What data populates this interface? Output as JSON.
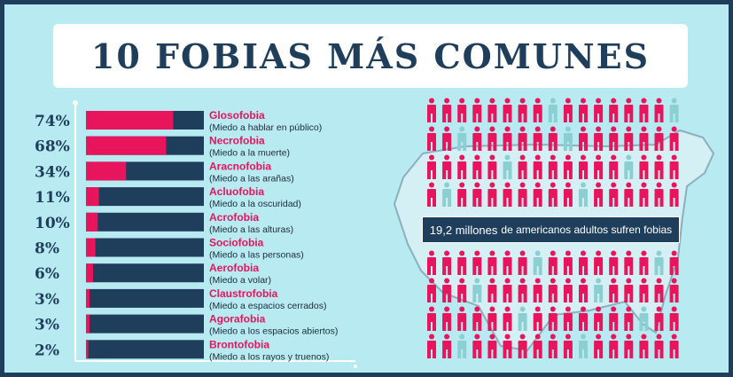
{
  "title": "10 FOBIAS MÁS COMUNES",
  "colors": {
    "navy": "#1e3e5c",
    "pink": "#e8145c",
    "teal": "#8ccfd2",
    "bg": "#b8eaf2"
  },
  "banner": {
    "highlight": "19,2 millones",
    "rest": "de americanos adultos sufren fobias"
  },
  "people_icon": "person-icon",
  "chart_data": {
    "type": "bar",
    "orientation": "horizontal-stacked-100",
    "categories": [
      "Glosofobia",
      "Necrofobia",
      "Aracnofobia",
      "Acluofobia",
      "Acrofobia",
      "Sociofobia",
      "Aerofobia",
      "Claustrofobia",
      "Agorafobia",
      "Brontofobia"
    ],
    "subtitles": [
      "(Miedo a hablar en público)",
      "(Miedo a la muerte)",
      "(Miedo a las arañas)",
      "(Miedo a la oscuridad)",
      "(Miedo a las alturas)",
      "(Miedo a las personas)",
      "(Miedo a volar)",
      "(Miedo a espacios cerrados)",
      "(Miedo a los espacios abiertos)",
      "(Miedo a los rayos y truenos)"
    ],
    "value_labels": [
      "74%",
      "68%",
      "34%",
      "11%",
      "10%",
      "8%",
      "6%",
      "3%",
      "3%",
      "2%"
    ],
    "values": [
      74,
      68,
      34,
      11,
      10,
      8,
      6,
      3,
      3,
      2
    ],
    "xlim": [
      0,
      100
    ]
  }
}
